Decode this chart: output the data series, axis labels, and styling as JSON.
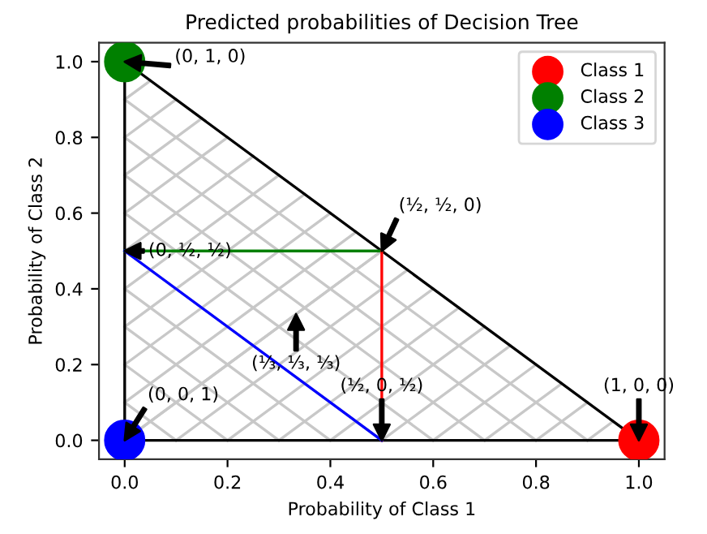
{
  "chart_data": {
    "type": "scatter",
    "title": "Predicted probabilities of Decision Tree",
    "xlabel": "Probability of Class 1",
    "ylabel": "Probability of Class 2",
    "xlim": [
      -0.05,
      1.05
    ],
    "ylim": [
      -0.05,
      1.05
    ],
    "xticks": [
      {
        "value": 0,
        "label": "0.0"
      },
      0.2,
      0.4,
      0.6,
      0.8,
      {
        "value": 1,
        "label": "1.0"
      }
    ],
    "yticks": [
      {
        "value": 0,
        "label": "0.0"
      },
      0.2,
      0.4,
      0.6,
      0.8,
      {
        "value": 1,
        "label": "1.0"
      }
    ],
    "grid": false,
    "legend": "top right",
    "series": [
      {
        "type": "line",
        "color": "#c8c8c8",
        "x": [
          0,
          0.1,
          null,
          0,
          0.2,
          null,
          0,
          0.3,
          null,
          0,
          0.4,
          null,
          0,
          0.5,
          null,
          0,
          0.6,
          null,
          0,
          0.7,
          null,
          0,
          0.8,
          null,
          0,
          0.9
        ],
        "values": [
          0.1,
          0,
          null,
          0.2,
          0,
          null,
          0.3,
          0,
          null,
          0.4,
          0,
          null,
          0.5,
          0,
          null,
          0.6,
          0,
          null,
          0.7,
          0,
          null,
          0.8,
          0,
          null,
          0.9,
          0
        ]
      },
      {
        "type": "line",
        "color": "#c8c8c8",
        "x": [
          0,
          0.5,
          null,
          0.1,
          0.55,
          null,
          0.2,
          0.6,
          null,
          0.3,
          0.65,
          null,
          0.4,
          0.7,
          null,
          0.5,
          0.75,
          null,
          0.6,
          0.8,
          null,
          0.7,
          0.85,
          null,
          0.8,
          0.9,
          null,
          0.9,
          0.95
        ],
        "values": [
          0,
          0.5,
          null,
          0,
          0.45,
          null,
          0,
          0.4,
          null,
          0,
          0.35,
          null,
          0,
          0.3,
          null,
          0,
          0.25,
          null,
          0,
          0.2,
          null,
          0,
          0.15,
          null,
          0,
          0.1,
          null,
          0,
          0.05
        ]
      },
      {
        "type": "line",
        "color": "#c8c8c8",
        "x": [
          0,
          0.5,
          null,
          0,
          0.45,
          null,
          0,
          0.4,
          null,
          0,
          0.35,
          null,
          0,
          0.3,
          null,
          0,
          0.25,
          null,
          0,
          0.2,
          null,
          0,
          0.15,
          null,
          0,
          0.1,
          null,
          0,
          0.05
        ],
        "values": [
          0,
          0.5,
          null,
          0.1,
          0.55,
          null,
          0.2,
          0.6,
          null,
          0.3,
          0.65,
          null,
          0.4,
          0.7,
          null,
          0.5,
          0.75,
          null,
          0.6,
          0.8,
          null,
          0.7,
          0.85,
          null,
          0.8,
          0.9,
          null,
          0.9,
          0.95
        ]
      },
      {
        "type": "line",
        "color": "#000000",
        "x": [
          0,
          1
        ],
        "values": [
          0,
          0
        ]
      },
      {
        "type": "line",
        "color": "#000000",
        "x": [
          0,
          1
        ],
        "values": [
          1,
          0
        ]
      },
      {
        "type": "line",
        "color": "#000000",
        "x": [
          0,
          0
        ],
        "values": [
          0,
          1
        ]
      },
      {
        "type": "line",
        "color": "#008000",
        "x": [
          0,
          0.5
        ],
        "values": [
          0.5,
          0.5
        ]
      },
      {
        "type": "line",
        "color": "#ff0000",
        "x": [
          0.5,
          0.5
        ],
        "values": [
          0.5,
          0
        ]
      },
      {
        "type": "line",
        "color": "#0000ff",
        "x": [
          0,
          0.5
        ],
        "values": [
          0.5,
          0
        ]
      },
      {
        "name": "Class 1",
        "color": "#ff0000",
        "x": [
          1
        ],
        "values": [
          0
        ]
      },
      {
        "name": "Class 2",
        "color": "#008000",
        "x": [
          0
        ],
        "values": [
          1
        ]
      },
      {
        "name": "Class 3",
        "color": "#0000ff",
        "x": [
          0
        ],
        "values": [
          0
        ]
      }
    ],
    "annotations": [
      {
        "text": "(1, 0, 0)",
        "x": 1,
        "y": 0
      },
      {
        "text": "(½, 0, ½)",
        "x": 0.5,
        "y": 0
      },
      {
        "text": "(0, 0, 1)",
        "x": 0,
        "y": 0
      },
      {
        "text": "(⅓, ⅓, ⅓)",
        "x": 0.3333,
        "y": 0.3333
      },
      {
        "text": "(0, ½, ½)",
        "x": 0,
        "y": 0.5
      },
      {
        "text": "(½, ½, 0)",
        "x": 0.5,
        "y": 0.5
      },
      {
        "text": "(0, 1, 0)",
        "x": 0,
        "y": 1
      }
    ]
  }
}
